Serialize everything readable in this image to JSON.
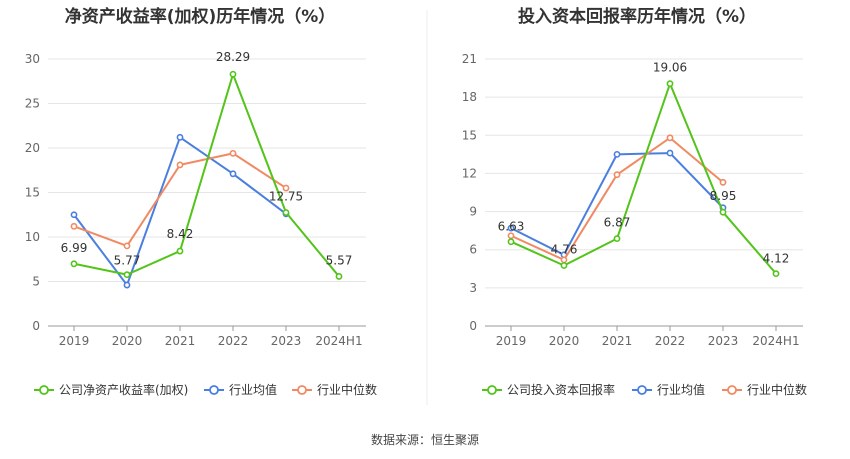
{
  "footer": "数据来源：恒生聚源",
  "colors": {
    "company": "#52C41A",
    "avg": "#4A7FE0",
    "median": "#F08A63",
    "grid": "#E5E5E5",
    "axis": "#999999",
    "divider": "#EEEEEE"
  },
  "chart_data": [
    {
      "type": "line",
      "title": "净资产收益率(加权)历年情况（%）",
      "categories": [
        "2019",
        "2020",
        "2021",
        "2022",
        "2023",
        "2024H1"
      ],
      "yticks": [
        "0",
        "5",
        "10",
        "15",
        "20",
        "25",
        "30"
      ],
      "ylim": [
        0,
        30
      ],
      "grid": true,
      "legend_position": "bottom",
      "series": [
        {
          "name": "公司净资产收益率(加权)",
          "key": "company",
          "values": [
            6.99,
            5.77,
            8.42,
            28.29,
            12.75,
            5.57
          ],
          "labels": [
            "6.99",
            "5.77",
            "8.42",
            "28.29",
            "12.75",
            "5.57"
          ]
        },
        {
          "name": "行业均值",
          "key": "avg",
          "values": [
            12.5,
            4.6,
            21.2,
            17.1,
            12.6,
            null
          ]
        },
        {
          "name": "行业中位数",
          "key": "median",
          "values": [
            11.2,
            9.0,
            18.1,
            19.4,
            15.5,
            null
          ]
        }
      ]
    },
    {
      "type": "line",
      "title": "投入资本回报率历年情况（%）",
      "categories": [
        "2019",
        "2020",
        "2021",
        "2022",
        "2023",
        "2024H1"
      ],
      "yticks": [
        "0",
        "3",
        "6",
        "9",
        "12",
        "15",
        "18",
        "21"
      ],
      "ylim": [
        0,
        21
      ],
      "grid": true,
      "legend_position": "bottom",
      "series": [
        {
          "name": "公司投入资本回报率",
          "key": "company",
          "values": [
            6.63,
            4.76,
            6.87,
            19.06,
            8.95,
            4.12
          ],
          "labels": [
            "6.63",
            "4.76",
            "6.87",
            "19.06",
            "8.95",
            "4.12"
          ]
        },
        {
          "name": "行业均值",
          "key": "avg",
          "values": [
            7.7,
            5.6,
            13.5,
            13.6,
            9.3,
            null
          ]
        },
        {
          "name": "行业中位数",
          "key": "median",
          "values": [
            7.1,
            5.2,
            11.9,
            14.8,
            11.3,
            null
          ]
        }
      ]
    }
  ]
}
